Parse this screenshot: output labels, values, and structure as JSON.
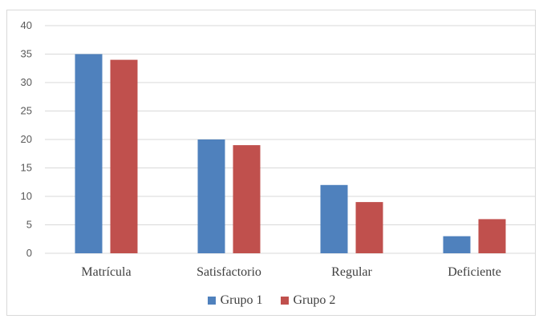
{
  "chart_data": {
    "type": "bar",
    "title": "",
    "xlabel": "",
    "ylabel": "",
    "categories": [
      "Matrícula",
      "Satisfactorio",
      "Regular",
      "Deficiente"
    ],
    "series": [
      {
        "name": "Grupo 1",
        "values": [
          35,
          20,
          12,
          3
        ],
        "color": "#4f81bd"
      },
      {
        "name": "Grupo 2",
        "values": [
          34,
          19,
          9,
          6
        ],
        "color": "#c0504d"
      }
    ],
    "ylim": [
      0,
      40
    ],
    "yticks": [
      "0",
      "5",
      "10",
      "15",
      "20",
      "25",
      "30",
      "35",
      "40"
    ],
    "grid": true,
    "legend": "bottom"
  }
}
